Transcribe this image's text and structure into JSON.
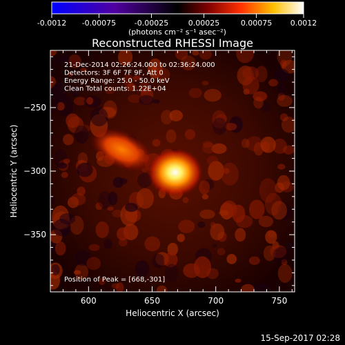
{
  "chart_data": {
    "type": "heatmap",
    "title": "Reconstructed RHESSI Image",
    "colorbar": {
      "ticks": [
        "-0.0012",
        "-0.00075",
        "-0.00025",
        "0.00025",
        "0.00075",
        "0.0012"
      ],
      "tick_values": [
        -0.0012,
        -0.00075,
        -0.00025,
        0.00025,
        0.00075,
        0.0012
      ],
      "range": [
        -0.0012,
        0.0012
      ],
      "unit_label": "(photons cm⁻² s⁻¹ asec⁻²)",
      "colors": [
        "#0000ff",
        "#5000a0",
        "#000000",
        "#800000",
        "#ff3000",
        "#ffc000",
        "#ffffff"
      ]
    },
    "xlabel": "Heliocentric X (arcsec)",
    "ylabel": "Heliocentric Y (arcsec)",
    "xlim": [
      570,
      762
    ],
    "ylim": [
      -395,
      -205
    ],
    "xticks": [
      600,
      650,
      700,
      750
    ],
    "xtick_labels": [
      "600",
      "650",
      "700",
      "750"
    ],
    "yticks": [
      -250,
      -300,
      -350
    ],
    "ytick_labels": [
      "−250",
      "−300",
      "−350"
    ],
    "info_lines": [
      "21-Dec-2014 02:26:24.000 to 02:36:24.000",
      "Detectors: 3F 6F 7F 9F, Att 0",
      "Energy Range: 25.0 - 50.0 keV",
      "Clean    Total counts: 1.22E+04"
    ],
    "peak_label": "Position of Peak = [668,-301]",
    "peak": [
      668,
      -301
    ],
    "sources": [
      {
        "x": 668,
        "y": -301,
        "strength": 0.0012,
        "sigma_x": 10,
        "sigma_y": 8
      },
      {
        "x": 626,
        "y": -283,
        "strength": 0.00075,
        "sigma_x": 12,
        "sigma_y": 6
      }
    ]
  },
  "footer": {
    "timestamp": "15-Sep-2017 02:28"
  }
}
